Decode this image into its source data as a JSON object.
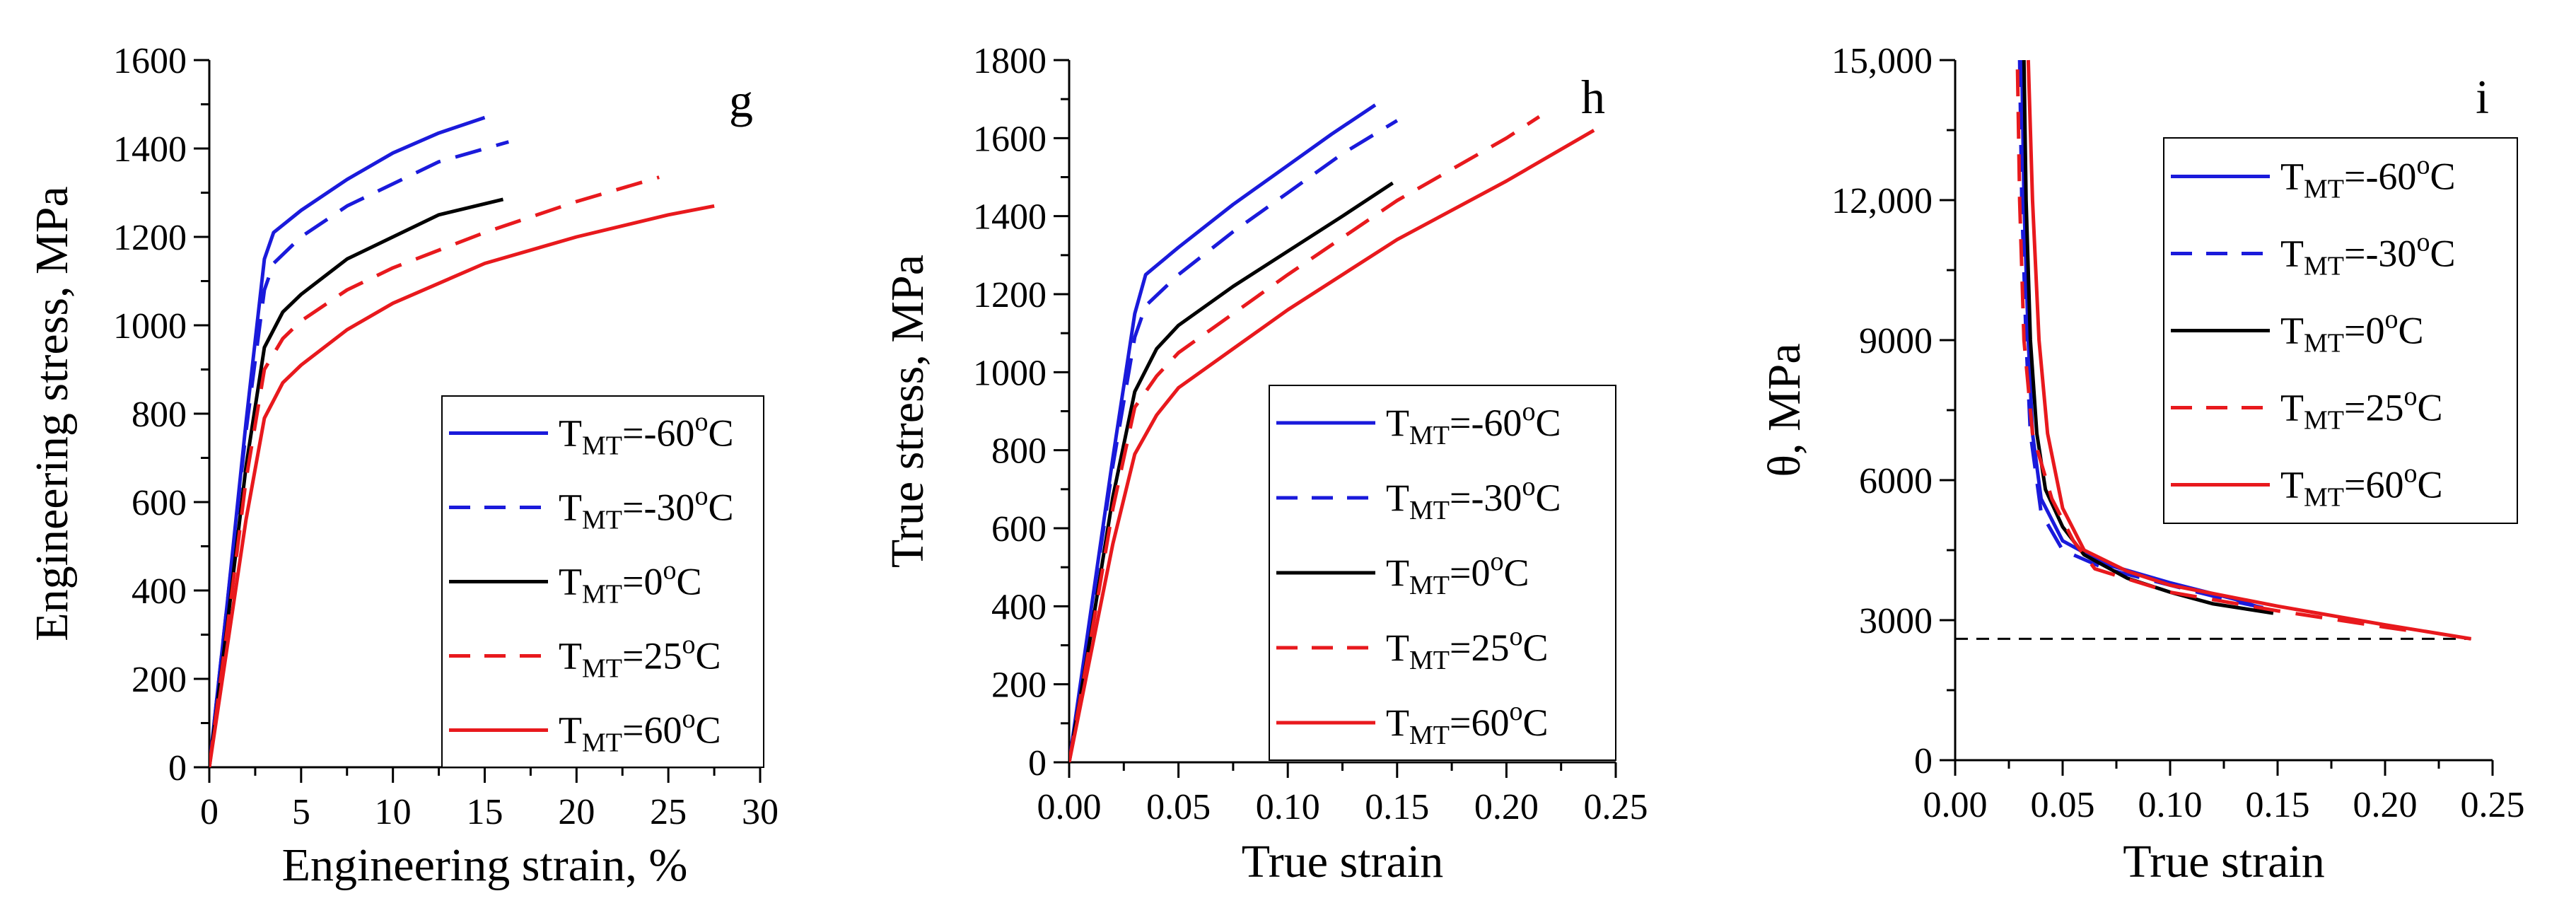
{
  "chart_data": [
    {
      "type": "line",
      "panel_label": "g",
      "xlabel": "Engineering strain, %",
      "ylabel": "Engineering stress, MPa",
      "xlim": [
        0,
        30
      ],
      "ylim": [
        0,
        1600
      ],
      "xticks": [
        0,
        5,
        10,
        15,
        20,
        25,
        30
      ],
      "yticks": [
        0,
        200,
        400,
        600,
        800,
        1000,
        1200,
        1400,
        1600
      ],
      "legend_position": "lower-right",
      "series": [
        {
          "name": "T_MT=-60°C",
          "sub": "MT",
          "value": "-60",
          "color": "#1a1adb",
          "dash": "solid",
          "points": [
            [
              0,
              0
            ],
            [
              1,
              380
            ],
            [
              2,
              780
            ],
            [
              3,
              1150
            ],
            [
              3.5,
              1210
            ],
            [
              5,
              1260
            ],
            [
              7.5,
              1330
            ],
            [
              10,
              1390
            ],
            [
              12.5,
              1435
            ],
            [
              15,
              1470
            ]
          ]
        },
        {
          "name": "T_MT=-30°C",
          "sub": "MT",
          "value": "-30",
          "color": "#1a1adb",
          "dash": "dash",
          "points": [
            [
              0,
              0
            ],
            [
              1,
              380
            ],
            [
              2,
              760
            ],
            [
              3,
              1080
            ],
            [
              3.5,
              1140
            ],
            [
              5,
              1200
            ],
            [
              7.5,
              1270
            ],
            [
              10,
              1320
            ],
            [
              12.5,
              1370
            ],
            [
              16.3,
              1415
            ]
          ]
        },
        {
          "name": "T_MT=0°C",
          "sub": "MT",
          "value": "0",
          "color": "#000000",
          "dash": "solid",
          "points": [
            [
              0,
              0
            ],
            [
              1,
              330
            ],
            [
              2,
              680
            ],
            [
              3,
              950
            ],
            [
              4,
              1030
            ],
            [
              5,
              1070
            ],
            [
              7.5,
              1150
            ],
            [
              10,
              1200
            ],
            [
              12.5,
              1250
            ],
            [
              16,
              1285
            ]
          ]
        },
        {
          "name": "T_MT=25°C",
          "sub": "MT",
          "value": "25",
          "color": "#e8191d",
          "dash": "dash",
          "points": [
            [
              0,
              0
            ],
            [
              1,
              320
            ],
            [
              2,
              650
            ],
            [
              3,
              900
            ],
            [
              4,
              970
            ],
            [
              5,
              1010
            ],
            [
              7.5,
              1080
            ],
            [
              10,
              1130
            ],
            [
              15,
              1210
            ],
            [
              20,
              1280
            ],
            [
              24.5,
              1335
            ]
          ]
        },
        {
          "name": "T_MT=60°C",
          "sub": "MT",
          "value": "60",
          "color": "#e8191d",
          "dash": "solid",
          "points": [
            [
              0,
              0
            ],
            [
              1,
              280
            ],
            [
              2,
              560
            ],
            [
              3,
              790
            ],
            [
              4,
              870
            ],
            [
              5,
              910
            ],
            [
              7.5,
              990
            ],
            [
              10,
              1050
            ],
            [
              15,
              1140
            ],
            [
              20,
              1200
            ],
            [
              25,
              1250
            ],
            [
              27.5,
              1270
            ]
          ]
        }
      ]
    },
    {
      "type": "line",
      "panel_label": "h",
      "xlabel": "True strain",
      "ylabel": "True stress, MPa",
      "xlim": [
        0,
        0.25
      ],
      "ylim": [
        0,
        1800
      ],
      "xticks": [
        "0.00",
        "0.05",
        "0.10",
        "0.15",
        "0.20",
        "0.25"
      ],
      "yticks": [
        0,
        200,
        400,
        600,
        800,
        1000,
        1200,
        1400,
        1600,
        1800
      ],
      "legend_position": "lower-right",
      "series": [
        {
          "name": "T_MT=-60°C",
          "sub": "MT",
          "value": "-60",
          "color": "#1a1adb",
          "dash": "solid",
          "points": [
            [
              0,
              0
            ],
            [
              0.01,
              390
            ],
            [
              0.02,
              780
            ],
            [
              0.03,
              1150
            ],
            [
              0.035,
              1250
            ],
            [
              0.05,
              1320
            ],
            [
              0.075,
              1430
            ],
            [
              0.1,
              1530
            ],
            [
              0.12,
              1610
            ],
            [
              0.14,
              1685
            ]
          ]
        },
        {
          "name": "T_MT=-30°C",
          "sub": "MT",
          "value": "-30",
          "color": "#1a1adb",
          "dash": "dash",
          "points": [
            [
              0,
              0
            ],
            [
              0.01,
              380
            ],
            [
              0.02,
              760
            ],
            [
              0.03,
              1090
            ],
            [
              0.035,
              1170
            ],
            [
              0.05,
              1250
            ],
            [
              0.075,
              1360
            ],
            [
              0.1,
              1460
            ],
            [
              0.125,
              1560
            ],
            [
              0.15,
              1645
            ]
          ]
        },
        {
          "name": "T_MT=0°C",
          "sub": "MT",
          "value": "0",
          "color": "#000000",
          "dash": "solid",
          "points": [
            [
              0,
              0
            ],
            [
              0.01,
              330
            ],
            [
              0.02,
              680
            ],
            [
              0.03,
              950
            ],
            [
              0.04,
              1060
            ],
            [
              0.05,
              1120
            ],
            [
              0.075,
              1220
            ],
            [
              0.1,
              1310
            ],
            [
              0.125,
              1400
            ],
            [
              0.148,
              1485
            ]
          ]
        },
        {
          "name": "T_MT=25°C",
          "sub": "MT",
          "value": "25",
          "color": "#e8191d",
          "dash": "dash",
          "points": [
            [
              0,
              0
            ],
            [
              0.01,
              320
            ],
            [
              0.02,
              650
            ],
            [
              0.03,
              910
            ],
            [
              0.04,
              990
            ],
            [
              0.05,
              1050
            ],
            [
              0.075,
              1150
            ],
            [
              0.1,
              1250
            ],
            [
              0.15,
              1440
            ],
            [
              0.2,
              1600
            ],
            [
              0.215,
              1655
            ]
          ]
        },
        {
          "name": "T_MT=60°C",
          "sub": "MT",
          "value": "60",
          "color": "#e8191d",
          "dash": "solid",
          "points": [
            [
              0,
              0
            ],
            [
              0.01,
              280
            ],
            [
              0.02,
              560
            ],
            [
              0.03,
              790
            ],
            [
              0.04,
              890
            ],
            [
              0.05,
              960
            ],
            [
              0.075,
              1060
            ],
            [
              0.1,
              1160
            ],
            [
              0.15,
              1340
            ],
            [
              0.2,
              1490
            ],
            [
              0.24,
              1620
            ]
          ]
        }
      ]
    },
    {
      "type": "line",
      "panel_label": "i",
      "xlabel": "True strain",
      "ylabel": "θ, MPa",
      "xlim": [
        0,
        0.25
      ],
      "ylim": [
        0,
        15000
      ],
      "xticks": [
        "0.00",
        "0.05",
        "0.10",
        "0.15",
        "0.20",
        "0.25"
      ],
      "yticks": [
        0,
        3000,
        6000,
        9000,
        "12,000",
        "15,000"
      ],
      "legend_position": "top-right",
      "reference_line": {
        "y": 2600,
        "x_range": [
          0,
          0.24
        ],
        "color": "#000000",
        "dash": "dash"
      },
      "series": [
        {
          "name": "T_MT=-60°C",
          "sub": "MT",
          "value": "-60",
          "color": "#1a1adb",
          "dash": "solid",
          "points": [
            [
              0.031,
              15000
            ],
            [
              0.032,
              12000
            ],
            [
              0.034,
              9000
            ],
            [
              0.036,
              7000
            ],
            [
              0.04,
              5600
            ],
            [
              0.05,
              4700
            ],
            [
              0.07,
              4200
            ],
            [
              0.1,
              3800
            ],
            [
              0.13,
              3450
            ],
            [
              0.14,
              3300
            ]
          ]
        },
        {
          "name": "T_MT=-30°C",
          "sub": "MT",
          "value": "-30",
          "color": "#1a1adb",
          "dash": "dash",
          "points": [
            [
              0.03,
              15000
            ],
            [
              0.031,
              12000
            ],
            [
              0.033,
              9000
            ],
            [
              0.035,
              7000
            ],
            [
              0.04,
              5300
            ],
            [
              0.05,
              4500
            ],
            [
              0.07,
              4100
            ],
            [
              0.1,
              3750
            ],
            [
              0.13,
              3400
            ],
            [
              0.15,
              3200
            ]
          ]
        },
        {
          "name": "T_MT=0°C",
          "sub": "MT",
          "value": "0",
          "color": "#000000",
          "dash": "solid",
          "points": [
            [
              0.032,
              15000
            ],
            [
              0.033,
              12000
            ],
            [
              0.035,
              9000
            ],
            [
              0.038,
              7000
            ],
            [
              0.042,
              5800
            ],
            [
              0.05,
              5000
            ],
            [
              0.06,
              4400
            ],
            [
              0.08,
              3900
            ],
            [
              0.1,
              3600
            ],
            [
              0.12,
              3350
            ],
            [
              0.148,
              3150
            ]
          ]
        },
        {
          "name": "T_MT=25°C",
          "sub": "MT",
          "value": "25",
          "color": "#e8191d",
          "dash": "dash",
          "points": [
            [
              0.029,
              14800
            ],
            [
              0.03,
              12000
            ],
            [
              0.032,
              9000
            ],
            [
              0.036,
              7000
            ],
            [
              0.045,
              5600
            ],
            [
              0.055,
              4700
            ],
            [
              0.065,
              4100
            ],
            [
              0.1,
              3600
            ],
            [
              0.15,
              3200
            ],
            [
              0.2,
              2850
            ],
            [
              0.215,
              2750
            ]
          ]
        },
        {
          "name": "T_MT=60°C",
          "sub": "MT",
          "value": "60",
          "color": "#e8191d",
          "dash": "solid",
          "points": [
            [
              0.034,
              15000
            ],
            [
              0.036,
              12000
            ],
            [
              0.039,
              9000
            ],
            [
              0.043,
              7000
            ],
            [
              0.05,
              5400
            ],
            [
              0.06,
              4500
            ],
            [
              0.08,
              4050
            ],
            [
              0.1,
              3750
            ],
            [
              0.15,
              3300
            ],
            [
              0.2,
              2900
            ],
            [
              0.24,
              2600
            ]
          ]
        }
      ]
    }
  ]
}
